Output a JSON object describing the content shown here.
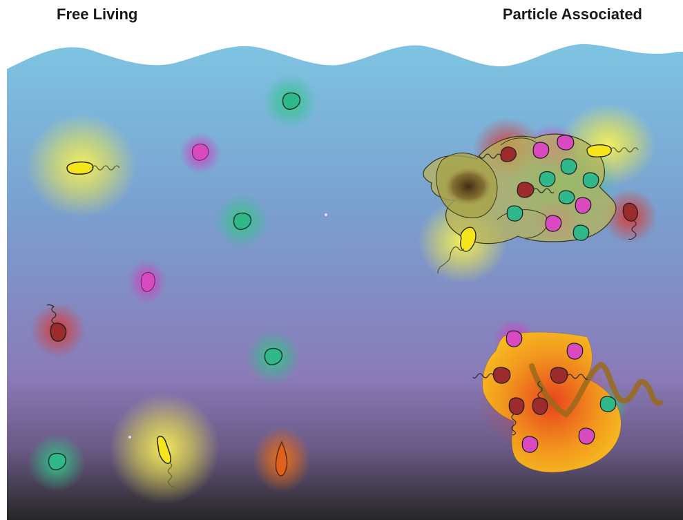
{
  "labels": {
    "free_living": "Free Living",
    "particle_associated": "Particle Associated"
  },
  "colors": {
    "water_top": "#7dbfe0",
    "water_mid": "#7f8fc6",
    "water_purple": "#8b7bb8",
    "water_bottom": "#2a2a2a",
    "yellow_cell": "#f5e51a",
    "green_cell": "#2fb88a",
    "magenta_cell": "#d94ac0",
    "red_cell": "#9c2b2b",
    "orange_cell": "#e0601c",
    "olive_particle": "#b8b45a",
    "orange_particle": "#f2a51c"
  }
}
